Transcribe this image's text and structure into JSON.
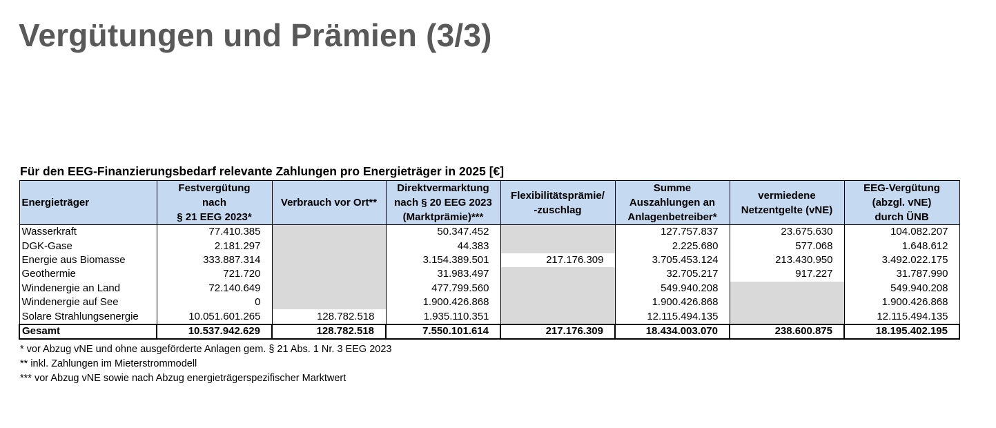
{
  "header": {
    "title": "Vergütungen und Prämien (3/3)"
  },
  "table": {
    "caption": "Für den EEG-Finanzierungsbedarf relevante Zahlungen pro Energieträger in 2025 [€]",
    "columns": [
      [
        "Energieträger"
      ],
      [
        "Festvergütung",
        "nach",
        "§ 21 EEG 2023*"
      ],
      [
        "Verbrauch vor Ort**"
      ],
      [
        "Direktvermarktung",
        "nach § 20 EEG 2023",
        "(Marktprämie)***"
      ],
      [
        "Flexibilitätsprämie/",
        "-zuschlag"
      ],
      [
        "Summe",
        "Auszahlungen an",
        "Anlagenbetreiber*"
      ],
      [
        "vermiedene",
        "Netzentgelte (vNE)"
      ],
      [
        "EEG-Vergütung",
        "(abzgl. vNE)",
        "durch ÜNB"
      ]
    ],
    "rows": [
      [
        "Wasserkraft",
        "77.410.385",
        null,
        "50.347.452",
        null,
        "127.757.837",
        "23.675.630",
        "104.082.207"
      ],
      [
        "DGK-Gase",
        "2.181.297",
        null,
        "44.383",
        null,
        "2.225.680",
        "577.068",
        "1.648.612"
      ],
      [
        "Energie aus Biomasse",
        "333.887.314",
        null,
        "3.154.389.501",
        "217.176.309",
        "3.705.453.124",
        "213.430.950",
        "3.492.022.175"
      ],
      [
        "Geothermie",
        "721.720",
        null,
        "31.983.497",
        null,
        "32.705.217",
        "917.227",
        "31.787.990"
      ],
      [
        "Windenergie an Land",
        "72.140.649",
        null,
        "477.799.560",
        null,
        "549.940.208",
        null,
        "549.940.208"
      ],
      [
        "Windenergie auf See",
        "0",
        null,
        "1.900.426.868",
        null,
        "1.900.426.868",
        null,
        "1.900.426.868"
      ],
      [
        "Solare Strahlungsenergie",
        "10.051.601.265",
        "128.782.518",
        "1.935.110.351",
        null,
        "12.115.494.135",
        null,
        "12.115.494.135"
      ]
    ],
    "total": [
      "Gesamt",
      "10.537.942.629",
      "128.782.518",
      "7.550.101.614",
      "217.176.309",
      "18.434.003.070",
      "238.600.875",
      "18.195.402.195"
    ]
  },
  "footnotes": [
    "* vor Abzug vNE und ohne ausgeförderte Anlagen gem. § 21 Abs. 1 Nr. 3 EEG 2023",
    "** inkl. Zahlungen im Mieterstrommodell",
    "*** vor Abzug vNE sowie nach Abzug energieträgerspezifischer Marktwert"
  ]
}
